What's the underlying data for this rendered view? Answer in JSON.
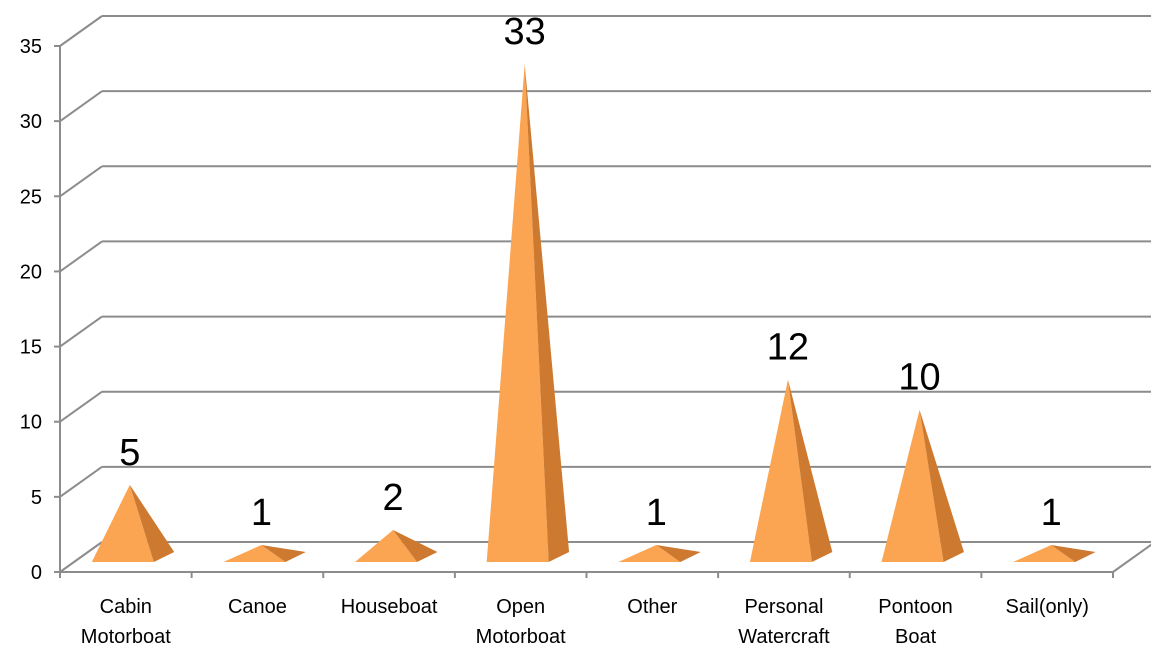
{
  "chart_data": {
    "type": "bar",
    "shape": "3d-pyramid",
    "categories": [
      [
        "Cabin",
        "Motorboat"
      ],
      [
        "Canoe"
      ],
      [
        "Houseboat"
      ],
      [
        "Open",
        "Motorboat"
      ],
      [
        "Other"
      ],
      [
        "Personal",
        "Watercraft"
      ],
      [
        "Pontoon",
        "Boat"
      ],
      [
        "Sail(only)"
      ]
    ],
    "values": [
      5,
      1,
      2,
      33,
      1,
      12,
      10,
      1
    ],
    "ylim": [
      0,
      35
    ],
    "yticks": [
      0,
      5,
      10,
      15,
      20,
      25,
      30,
      35
    ],
    "grid": true,
    "legend": "none",
    "colors": {
      "front": "#fba452",
      "side": "#cd7a30",
      "grid": "#8c8c8c"
    }
  }
}
